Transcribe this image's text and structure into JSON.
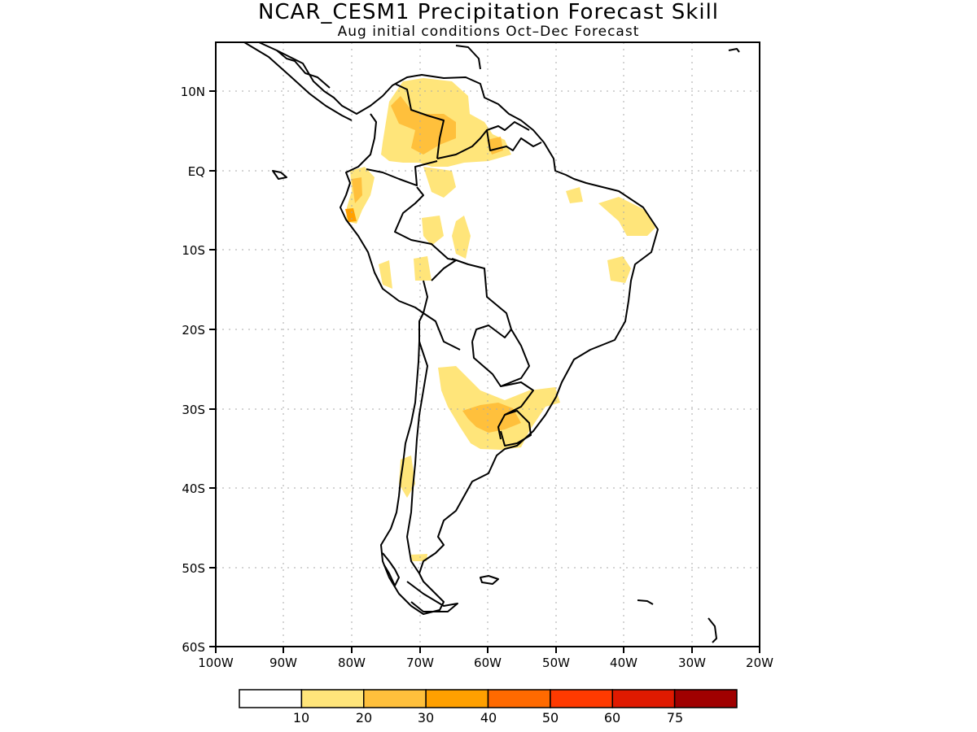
{
  "title": "NCAR_CESM1 Precipitation Forecast Skill",
  "subtitle": "Aug initial conditions  Oct–Dec Forecast",
  "lat_labels": [
    "10N",
    "EQ",
    "10S",
    "20S",
    "30S",
    "40S",
    "50S",
    "60S"
  ],
  "lon_labels": [
    "100W",
    "90W",
    "80W",
    "70W",
    "60W",
    "50W",
    "40W",
    "30W",
    "20W"
  ],
  "legend": {
    "labels": [
      "10",
      "20",
      "30",
      "40",
      "50",
      "60",
      "75"
    ],
    "colors": [
      "#ffffff",
      "#ffe57a",
      "#ffc03c",
      "#ffa000",
      "#ff6a00",
      "#ff3a00",
      "#e01a00",
      "#a00000"
    ]
  },
  "colors": {
    "land_outline": "#000000",
    "grid": "#aaaaaa"
  }
}
